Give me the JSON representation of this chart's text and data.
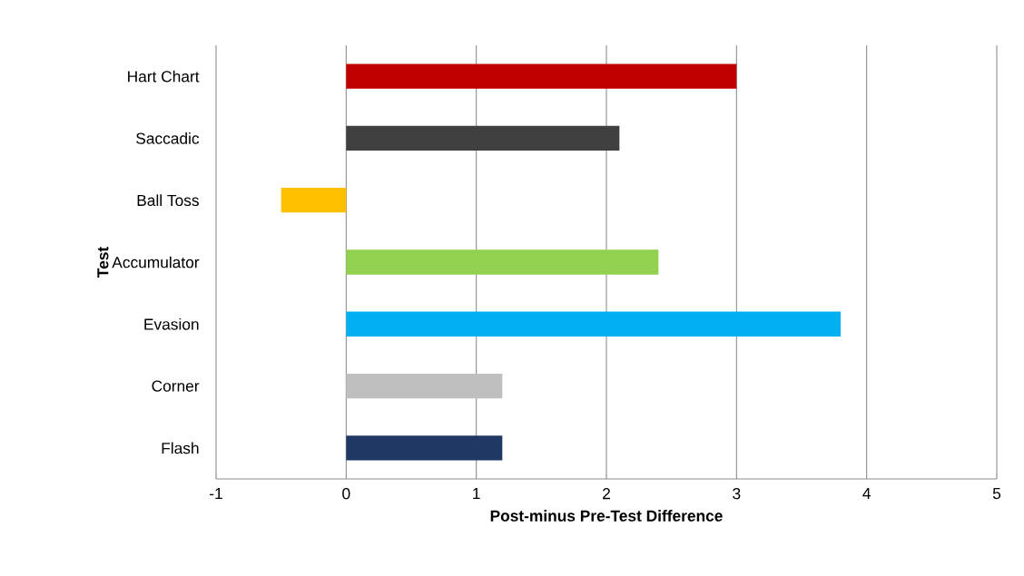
{
  "chart_data": {
    "type": "bar",
    "orientation": "horizontal",
    "xlabel": "Post-minus Pre-Test Difference",
    "ylabel": "Test",
    "categories": [
      "Hart Chart",
      "Saccadic",
      "Ball Toss",
      "Accumulator",
      "Evasion",
      "Corner",
      "Flash"
    ],
    "values": [
      3.0,
      2.1,
      -0.5,
      2.4,
      3.8,
      1.2,
      1.2
    ],
    "colors": [
      "#c00000",
      "#404040",
      "#ffc000",
      "#92d050",
      "#00b0f0",
      "#bfbfbf",
      "#1f3864"
    ],
    "xlim": [
      -1,
      5
    ],
    "xticks": [
      -1,
      0,
      1,
      2,
      3,
      4,
      5
    ],
    "grid": "x"
  }
}
